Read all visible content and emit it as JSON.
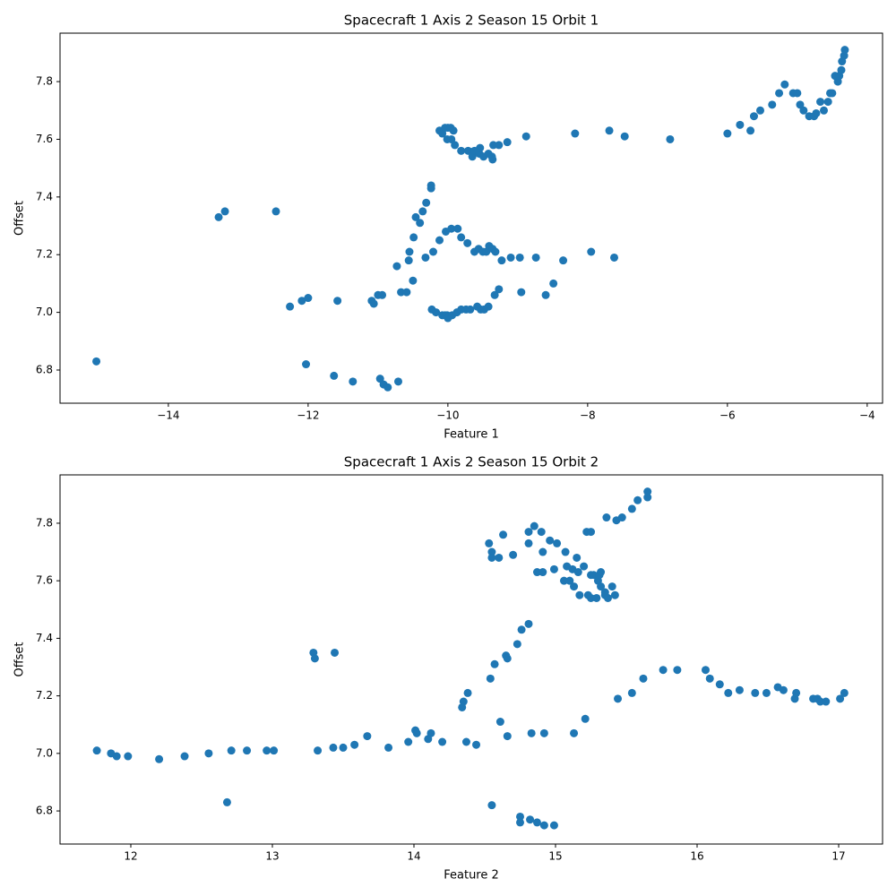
{
  "chart_data": [
    {
      "type": "scatter",
      "title": "Spacecraft 1 Axis 2 Season 15 Orbit 1",
      "xlabel": "Feature 1",
      "ylabel": "Offset",
      "color": "#1f77b4",
      "xlim": [
        -15.55,
        -3.78
      ],
      "ylim": [
        6.685,
        7.968
      ],
      "xticks": [
        {
          "value": -14,
          "label": "−14"
        },
        {
          "value": -12,
          "label": "−12"
        },
        {
          "value": -10,
          "label": "−10"
        },
        {
          "value": -8,
          "label": "−8"
        },
        {
          "value": -6,
          "label": "−6"
        },
        {
          "value": -4,
          "label": "−4"
        }
      ],
      "yticks": [
        6.8,
        {
          "value": 7,
          "label": "7.0"
        },
        7.2,
        7.4,
        7.6,
        7.8
      ],
      "x": [
        -15.03,
        -13.28,
        -13.19,
        -12.46,
        -12.26,
        -12.09,
        -12.0,
        -12.03,
        -11.58,
        -11.63,
        -11.36,
        -11.09,
        -11.06,
        -11.0,
        -10.94,
        -10.97,
        -10.92,
        -10.86,
        -10.71,
        -10.73,
        -10.67,
        -10.59,
        -10.56,
        -10.55,
        -10.5,
        -10.49,
        -10.46,
        -10.4,
        -10.36,
        -10.31,
        -10.32,
        -10.24,
        -10.24,
        -10.21,
        -10.12,
        -10.23,
        -10.17,
        -10.08,
        -10.04,
        -10.01,
        -10.0,
        -9.94,
        -9.87,
        -9.81,
        -9.74,
        -9.68,
        -9.58,
        -9.53,
        -9.42,
        -9.48,
        -9.33,
        -9.27,
        -8.95,
        -8.6,
        -8.49,
        -8.35,
        -7.95,
        -7.62,
        -10.03,
        -9.95,
        -9.86,
        -9.81,
        -9.72,
        -9.62,
        -9.56,
        -9.5,
        -9.45,
        -9.41,
        -9.36,
        -9.32,
        -9.23,
        -9.1,
        -8.97,
        -8.74,
        -10.12,
        -10.08,
        -10.04,
        -10.0,
        -9.96,
        -9.92,
        -10.01,
        -9.95,
        -9.9,
        -9.81,
        -9.71,
        -9.65,
        -9.62,
        -9.55,
        -9.54,
        -9.49,
        -9.42,
        -9.37,
        -9.36,
        -9.35,
        -9.27,
        -9.15,
        -8.88,
        -8.18,
        -7.69,
        -7.47,
        -6.82,
        -6.0,
        -5.82,
        -5.67,
        -5.62,
        -5.53,
        -5.36,
        -5.26,
        -5.18,
        -5.06,
        -5.0,
        -4.96,
        -4.91,
        -4.83,
        -4.76,
        -4.73,
        -4.67,
        -4.62,
        -4.56,
        -4.53,
        -4.5,
        -4.46,
        -4.42,
        -4.4,
        -4.37,
        -4.36,
        -4.33,
        -4.32
      ],
      "values": [
        6.83,
        7.33,
        7.35,
        7.35,
        7.02,
        7.04,
        7.05,
        6.82,
        7.04,
        6.78,
        6.76,
        7.04,
        7.03,
        7.06,
        7.06,
        6.77,
        6.75,
        6.74,
        6.76,
        7.16,
        7.07,
        7.07,
        7.18,
        7.21,
        7.11,
        7.26,
        7.33,
        7.31,
        7.35,
        7.38,
        7.19,
        7.44,
        7.43,
        7.21,
        7.25,
        7.01,
        7.0,
        6.99,
        6.99,
        6.99,
        6.98,
        6.99,
        7.0,
        7.01,
        7.01,
        7.01,
        7.02,
        7.01,
        7.02,
        7.01,
        7.06,
        7.08,
        7.07,
        7.06,
        7.1,
        7.18,
        7.21,
        7.19,
        7.28,
        7.29,
        7.29,
        7.26,
        7.24,
        7.21,
        7.22,
        7.21,
        7.21,
        7.23,
        7.22,
        7.21,
        7.18,
        7.19,
        7.19,
        7.19,
        7.63,
        7.62,
        7.64,
        7.64,
        7.64,
        7.63,
        7.6,
        7.6,
        7.58,
        7.56,
        7.56,
        7.54,
        7.56,
        7.55,
        7.57,
        7.54,
        7.55,
        7.54,
        7.53,
        7.58,
        7.58,
        7.59,
        7.61,
        7.62,
        7.63,
        7.61,
        7.6,
        7.62,
        7.65,
        7.63,
        7.68,
        7.7,
        7.72,
        7.76,
        7.79,
        7.76,
        7.76,
        7.72,
        7.7,
        7.68,
        7.68,
        7.69,
        7.73,
        7.7,
        7.73,
        7.76,
        7.76,
        7.82,
        7.8,
        7.82,
        7.84,
        7.87,
        7.89,
        7.91
      ]
    },
    {
      "type": "scatter",
      "title": "Spacecraft 1 Axis 2 Season 15 Orbit 2",
      "xlabel": "Feature 2",
      "ylabel": "Offset",
      "color": "#1f77b4",
      "xlim": [
        11.5,
        17.31
      ],
      "ylim": [
        6.685,
        7.968
      ],
      "xticks": [
        12,
        13,
        14,
        15,
        16,
        17
      ],
      "yticks": [
        6.8,
        {
          "value": 7,
          "label": "7.0"
        },
        7.2,
        7.4,
        7.6,
        7.8
      ],
      "x": [
        11.76,
        11.86,
        11.9,
        11.98,
        12.2,
        12.38,
        12.55,
        12.68,
        12.71,
        12.82,
        12.96,
        13.01,
        13.29,
        13.3,
        13.32,
        13.44,
        13.43,
        13.5,
        13.58,
        13.67,
        13.82,
        13.96,
        14.01,
        14.02,
        14.1,
        14.12,
        14.2,
        14.34,
        14.35,
        14.38,
        14.37,
        14.44,
        14.54,
        14.57,
        14.55,
        14.61,
        14.65,
        14.66,
        14.66,
        14.73,
        14.76,
        14.81,
        14.75,
        14.75,
        14.82,
        14.83,
        14.87,
        14.92,
        14.92,
        14.99,
        15.13,
        15.21,
        15.44,
        15.54,
        15.62,
        15.76,
        15.86,
        16.06,
        16.09,
        16.16,
        16.22,
        16.3,
        16.41,
        16.49,
        16.57,
        16.61,
        16.69,
        16.7,
        16.82,
        16.85,
        16.87,
        16.91,
        17.01,
        17.04,
        14.53,
        14.55,
        14.55,
        14.6,
        14.63,
        14.7,
        14.81,
        14.81,
        14.85,
        14.9,
        14.91,
        14.87,
        14.91,
        14.96,
        15.01,
        14.99,
        15.07,
        15.06,
        15.08,
        15.1,
        15.12,
        15.13,
        15.15,
        15.16,
        15.17,
        15.2,
        15.22,
        15.25,
        15.23,
        15.25,
        15.25,
        15.27,
        15.29,
        15.3,
        15.31,
        15.32,
        15.32,
        15.35,
        15.35,
        15.36,
        15.37,
        15.4,
        15.42,
        15.43,
        15.47,
        15.54,
        15.58,
        15.65,
        15.65
      ],
      "values": [
        7.01,
        7.0,
        6.99,
        6.99,
        6.98,
        6.99,
        7.0,
        6.83,
        7.01,
        7.01,
        7.01,
        7.01,
        7.35,
        7.33,
        7.01,
        7.35,
        7.02,
        7.02,
        7.03,
        7.06,
        7.02,
        7.04,
        7.08,
        7.07,
        7.05,
        7.07,
        7.04,
        7.16,
        7.18,
        7.21,
        7.04,
        7.03,
        7.26,
        7.31,
        6.82,
        7.11,
        7.34,
        7.33,
        7.06,
        7.38,
        7.43,
        7.45,
        6.78,
        6.76,
        6.77,
        7.07,
        6.76,
        6.75,
        7.07,
        6.75,
        7.07,
        7.12,
        7.19,
        7.21,
        7.26,
        7.29,
        7.29,
        7.29,
        7.26,
        7.24,
        7.21,
        7.22,
        7.21,
        7.21,
        7.23,
        7.22,
        7.19,
        7.21,
        7.19,
        7.19,
        7.18,
        7.18,
        7.19,
        7.21,
        7.73,
        7.7,
        7.68,
        7.68,
        7.76,
        7.69,
        7.77,
        7.73,
        7.79,
        7.77,
        7.7,
        7.63,
        7.63,
        7.74,
        7.73,
        7.64,
        7.7,
        7.6,
        7.65,
        7.6,
        7.64,
        7.58,
        7.68,
        7.63,
        7.55,
        7.65,
        7.77,
        7.77,
        7.55,
        7.54,
        7.62,
        7.62,
        7.54,
        7.6,
        7.62,
        7.63,
        7.58,
        7.56,
        7.55,
        7.82,
        7.54,
        7.58,
        7.55,
        7.81,
        7.82,
        7.85,
        7.88,
        7.89,
        7.91
      ]
    }
  ]
}
